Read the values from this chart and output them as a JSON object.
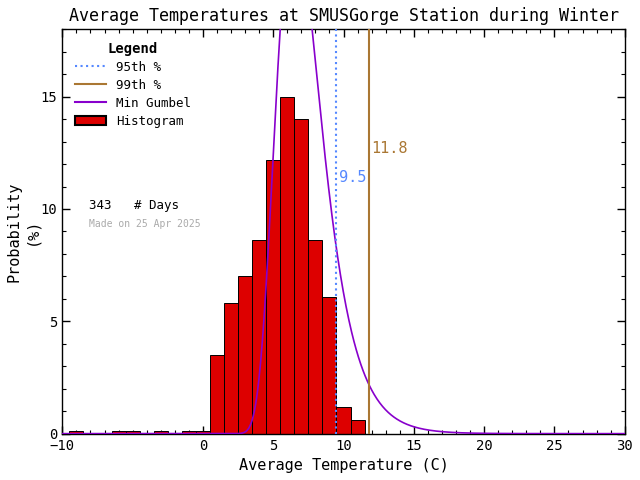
{
  "title": "Average Temperatures at SMUSGorge Station during Winter",
  "xlabel": "Average Temperature (C)",
  "ylabel": "Probability\n(%)",
  "xlim": [
    -10,
    30
  ],
  "ylim": [
    0,
    18
  ],
  "xticks": [
    -10,
    0,
    5,
    10,
    15,
    20,
    25,
    30
  ],
  "yticks": [
    0,
    5,
    10,
    15
  ],
  "bar_centers": [
    -9,
    -8,
    -7,
    -6,
    -5,
    -4,
    -3,
    -2,
    -1,
    0,
    1,
    2,
    3,
    4,
    5,
    6,
    7,
    8,
    9,
    10,
    11,
    12,
    13
  ],
  "bar_heights": [
    0.1,
    0.0,
    0.0,
    0.1,
    0.1,
    0.0,
    0.1,
    0.0,
    0.1,
    0.1,
    3.5,
    5.8,
    7.0,
    8.6,
    12.2,
    15.0,
    14.0,
    8.6,
    6.1,
    1.2,
    0.6,
    0.0,
    0.0
  ],
  "bar_color": "#dd0000",
  "bar_edgecolor": "#000000",
  "gumbel_mu": 6.5,
  "gumbel_beta": 1.6,
  "pct95": 9.5,
  "pct99": 11.8,
  "n_days": 343,
  "date_made": "Made on 25 Apr 2025",
  "legend_title": "Legend",
  "bg_color": "#ffffff",
  "spine_color": "#000000",
  "title_fontsize": 12,
  "axis_fontsize": 11,
  "tick_fontsize": 10,
  "pct95_color": "#5588ff",
  "pct99_color": "#aa7733",
  "gumbel_color": "#8800cc",
  "annot_fontsize": 11
}
